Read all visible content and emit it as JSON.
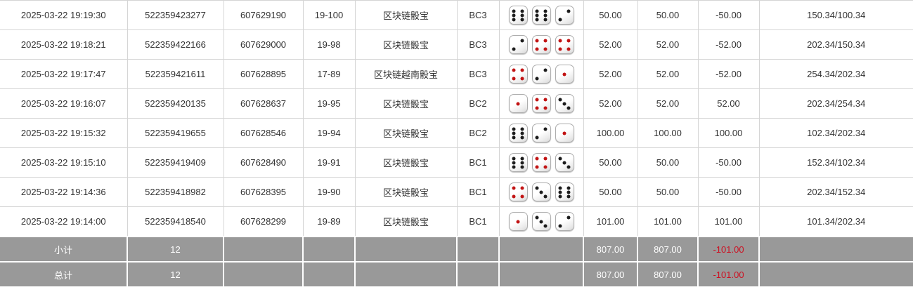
{
  "table": {
    "rows": [
      {
        "time": "2025-03-22 19:19:30",
        "order_no": "522359423277",
        "round_no": "607629190",
        "issue": "19-100",
        "game": "区块链骰宝",
        "table_label": "BC3",
        "dice": [
          6,
          6,
          2
        ],
        "bet": "50.00",
        "valid": "50.00",
        "win_loss": "-50.00",
        "balance": "150.34/100.34"
      },
      {
        "time": "2025-03-22 19:18:21",
        "order_no": "522359422166",
        "round_no": "607629000",
        "issue": "19-98",
        "game": "区块链骰宝",
        "table_label": "BC3",
        "dice": [
          2,
          4,
          4
        ],
        "bet": "52.00",
        "valid": "52.00",
        "win_loss": "-52.00",
        "balance": "202.34/150.34"
      },
      {
        "time": "2025-03-22 19:17:47",
        "order_no": "522359421611",
        "round_no": "607628895",
        "issue": "17-89",
        "game": "区块链越南骰宝",
        "table_label": "BC3",
        "dice": [
          4,
          2,
          1
        ],
        "bet": "52.00",
        "valid": "52.00",
        "win_loss": "-52.00",
        "balance": "254.34/202.34"
      },
      {
        "time": "2025-03-22 19:16:07",
        "order_no": "522359420135",
        "round_no": "607628637",
        "issue": "19-95",
        "game": "区块链骰宝",
        "table_label": "BC2",
        "dice": [
          1,
          4,
          3
        ],
        "bet": "52.00",
        "valid": "52.00",
        "win_loss": "52.00",
        "balance": "202.34/254.34"
      },
      {
        "time": "2025-03-22 19:15:32",
        "order_no": "522359419655",
        "round_no": "607628546",
        "issue": "19-94",
        "game": "区块链骰宝",
        "table_label": "BC2",
        "dice": [
          6,
          2,
          1
        ],
        "bet": "100.00",
        "valid": "100.00",
        "win_loss": "100.00",
        "balance": "102.34/202.34"
      },
      {
        "time": "2025-03-22 19:15:10",
        "order_no": "522359419409",
        "round_no": "607628490",
        "issue": "19-91",
        "game": "区块链骰宝",
        "table_label": "BC1",
        "dice": [
          6,
          4,
          3
        ],
        "bet": "50.00",
        "valid": "50.00",
        "win_loss": "-50.00",
        "balance": "152.34/102.34"
      },
      {
        "time": "2025-03-22 19:14:36",
        "order_no": "522359418982",
        "round_no": "607628395",
        "issue": "19-90",
        "game": "区块链骰宝",
        "table_label": "BC1",
        "dice": [
          4,
          3,
          6
        ],
        "bet": "50.00",
        "valid": "50.00",
        "win_loss": "-50.00",
        "balance": "202.34/152.34"
      },
      {
        "time": "2025-03-22 19:14:00",
        "order_no": "522359418540",
        "round_no": "607628299",
        "issue": "19-89",
        "game": "区块链骰宝",
        "table_label": "BC1",
        "dice": [
          1,
          3,
          2
        ],
        "bet": "101.00",
        "valid": "101.00",
        "win_loss": "101.00",
        "balance": "101.34/202.34"
      }
    ],
    "summary_rows": [
      {
        "label": "小计",
        "count": "12",
        "bet": "807.00",
        "valid": "807.00",
        "win_loss": "-101.00",
        "balance": ""
      },
      {
        "label": "总计",
        "count": "12",
        "bet": "807.00",
        "valid": "807.00",
        "win_loss": "-101.00",
        "balance": ""
      }
    ],
    "red_pip_values": [
      1,
      4
    ]
  },
  "colors": {
    "bet_link_blue": "#3c64c8",
    "loss_red": "#e02b2b",
    "summary_bg": "#999999",
    "summary_text": "#ffffff",
    "summary_loss_red": "#cc1122",
    "border_gray": "#d5d5d5",
    "pip_black": "#1c1c1c",
    "pip_red": "#c21414",
    "text": "#333333"
  }
}
